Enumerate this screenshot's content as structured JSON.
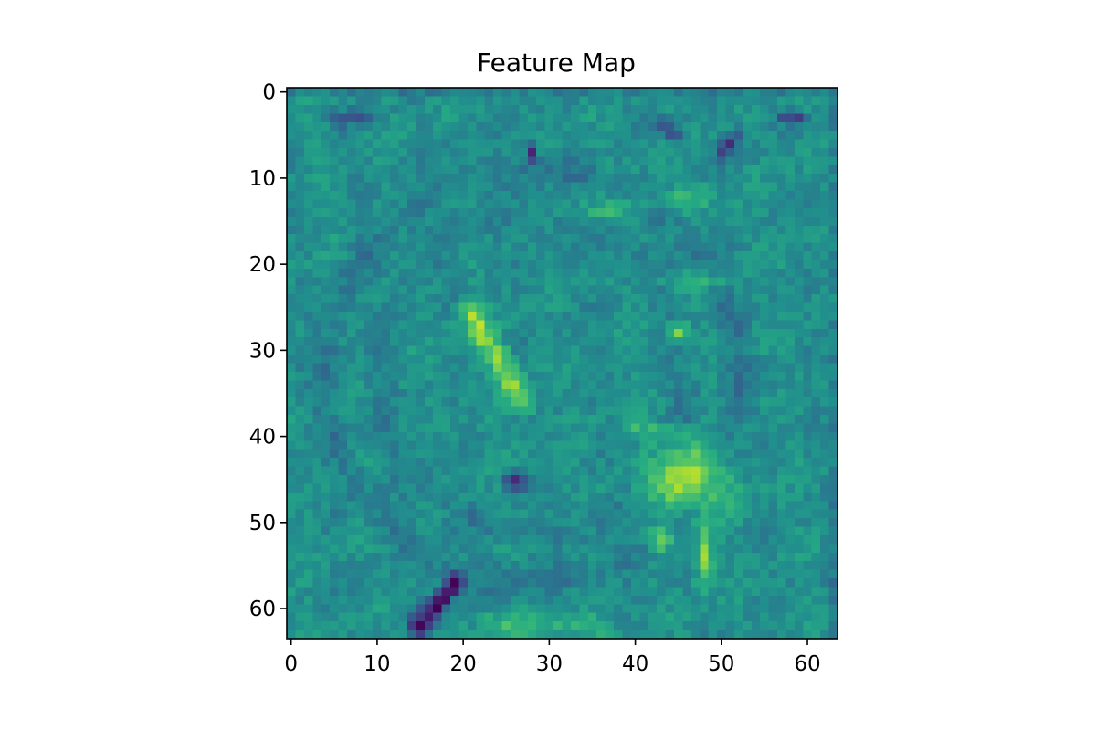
{
  "chart_data": {
    "type": "heatmap",
    "title": "Feature Map",
    "xlabel": "",
    "ylabel": "",
    "rows": 64,
    "cols": 64,
    "xlim": [
      -0.5,
      63.5
    ],
    "ylim": [
      63.5,
      -0.5
    ],
    "x_ticks": [
      0,
      10,
      20,
      30,
      40,
      50,
      60
    ],
    "y_ticks": [
      0,
      10,
      20,
      30,
      40,
      50,
      60
    ],
    "x_tick_labels": [
      "0",
      "10",
      "20",
      "30",
      "40",
      "50",
      "60"
    ],
    "y_tick_labels": [
      "0",
      "10",
      "20",
      "30",
      "40",
      "50",
      "60"
    ],
    "colormap": "viridis",
    "grid": false,
    "value_range": [
      0,
      1
    ],
    "background_level": 0.5,
    "features": [
      {
        "kind": "blob",
        "center": [
          46,
          45
        ],
        "sigma": [
          3.2,
          2.6
        ],
        "amplitude": 0.42
      },
      {
        "kind": "blob",
        "center": [
          45,
          28
        ],
        "sigma": [
          0.9,
          0.9
        ],
        "amplitude": 0.35
      },
      {
        "kind": "blob",
        "center": [
          48,
          54
        ],
        "sigma": [
          0.7,
          2.2
        ],
        "amplitude": 0.35
      },
      {
        "kind": "blob",
        "center": [
          43,
          52
        ],
        "sigma": [
          1.0,
          1.0
        ],
        "amplitude": 0.25
      },
      {
        "kind": "line",
        "from": [
          21,
          26
        ],
        "to": [
          27,
          36
        ],
        "width": 1.0,
        "amplitude": 0.3
      },
      {
        "kind": "line",
        "from": [
          42,
          22
        ],
        "to": [
          50,
          22
        ],
        "width": 0.7,
        "amplitude": 0.12
      },
      {
        "kind": "line",
        "from": [
          35,
          14
        ],
        "to": [
          48,
          12
        ],
        "width": 0.9,
        "amplitude": 0.13
      },
      {
        "kind": "line",
        "from": [
          23,
          62
        ],
        "to": [
          36,
          62
        ],
        "width": 0.9,
        "amplitude": 0.14
      },
      {
        "kind": "line",
        "from": [
          40,
          39
        ],
        "to": [
          46,
          40
        ],
        "width": 0.8,
        "amplitude": 0.15
      },
      {
        "kind": "blob",
        "center": [
          26,
          45
        ],
        "sigma": [
          1.0,
          0.8
        ],
        "amplitude": -0.42
      },
      {
        "kind": "line",
        "from": [
          15,
          62
        ],
        "to": [
          19,
          57
        ],
        "width": 0.8,
        "amplitude": -0.5
      },
      {
        "kind": "blob",
        "center": [
          28,
          7
        ],
        "sigma": [
          0.5,
          0.9
        ],
        "amplitude": -0.38
      },
      {
        "kind": "line",
        "from": [
          43,
          4
        ],
        "to": [
          45,
          5
        ],
        "width": 0.6,
        "amplitude": -0.3
      },
      {
        "kind": "line",
        "from": [
          50,
          7
        ],
        "to": [
          52,
          5
        ],
        "width": 0.6,
        "amplitude": -0.3
      },
      {
        "kind": "line",
        "from": [
          57,
          3
        ],
        "to": [
          59,
          3
        ],
        "width": 0.6,
        "amplitude": -0.22
      },
      {
        "kind": "line",
        "from": [
          5,
          3
        ],
        "to": [
          9,
          3
        ],
        "width": 0.6,
        "amplitude": -0.18
      },
      {
        "kind": "ring",
        "center": [
          28,
          33
        ],
        "radius": 24,
        "width": 1.2,
        "amplitude": -0.08
      },
      {
        "kind": "ring",
        "center": [
          28,
          33
        ],
        "radius": 18,
        "width": 1.2,
        "amplitude": -0.06
      }
    ]
  }
}
